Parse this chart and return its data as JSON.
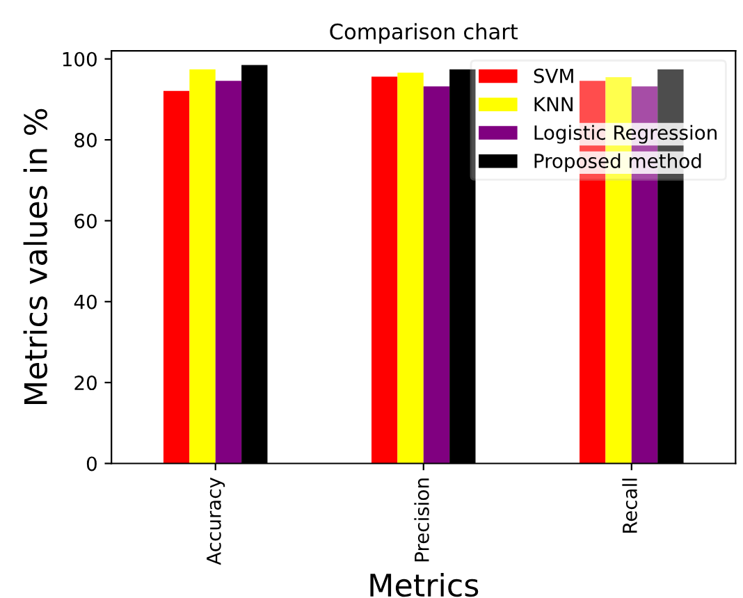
{
  "chart_data": {
    "type": "bar",
    "title": "Comparison chart",
    "xlabel": "Metrics",
    "ylabel": "Metrics values in %",
    "categories": [
      "Accuracy",
      "Precision",
      "Recall"
    ],
    "series": [
      {
        "name": "SVM",
        "color": "#ff0000",
        "values": [
          92.1,
          95.6,
          94.6
        ]
      },
      {
        "name": "KNN",
        "color": "#ffff00",
        "values": [
          97.4,
          96.6,
          95.5
        ]
      },
      {
        "name": "Logistic Regression",
        "color": "#800080",
        "values": [
          94.6,
          93.2,
          93.2
        ]
      },
      {
        "name": "Proposed method",
        "color": "#000000",
        "values": [
          98.5,
          97.4,
          97.4
        ]
      }
    ],
    "ylim": [
      0,
      102
    ],
    "yticks": [
      0,
      20,
      40,
      60,
      80,
      100
    ],
    "legend": "top right",
    "grid": false
  }
}
